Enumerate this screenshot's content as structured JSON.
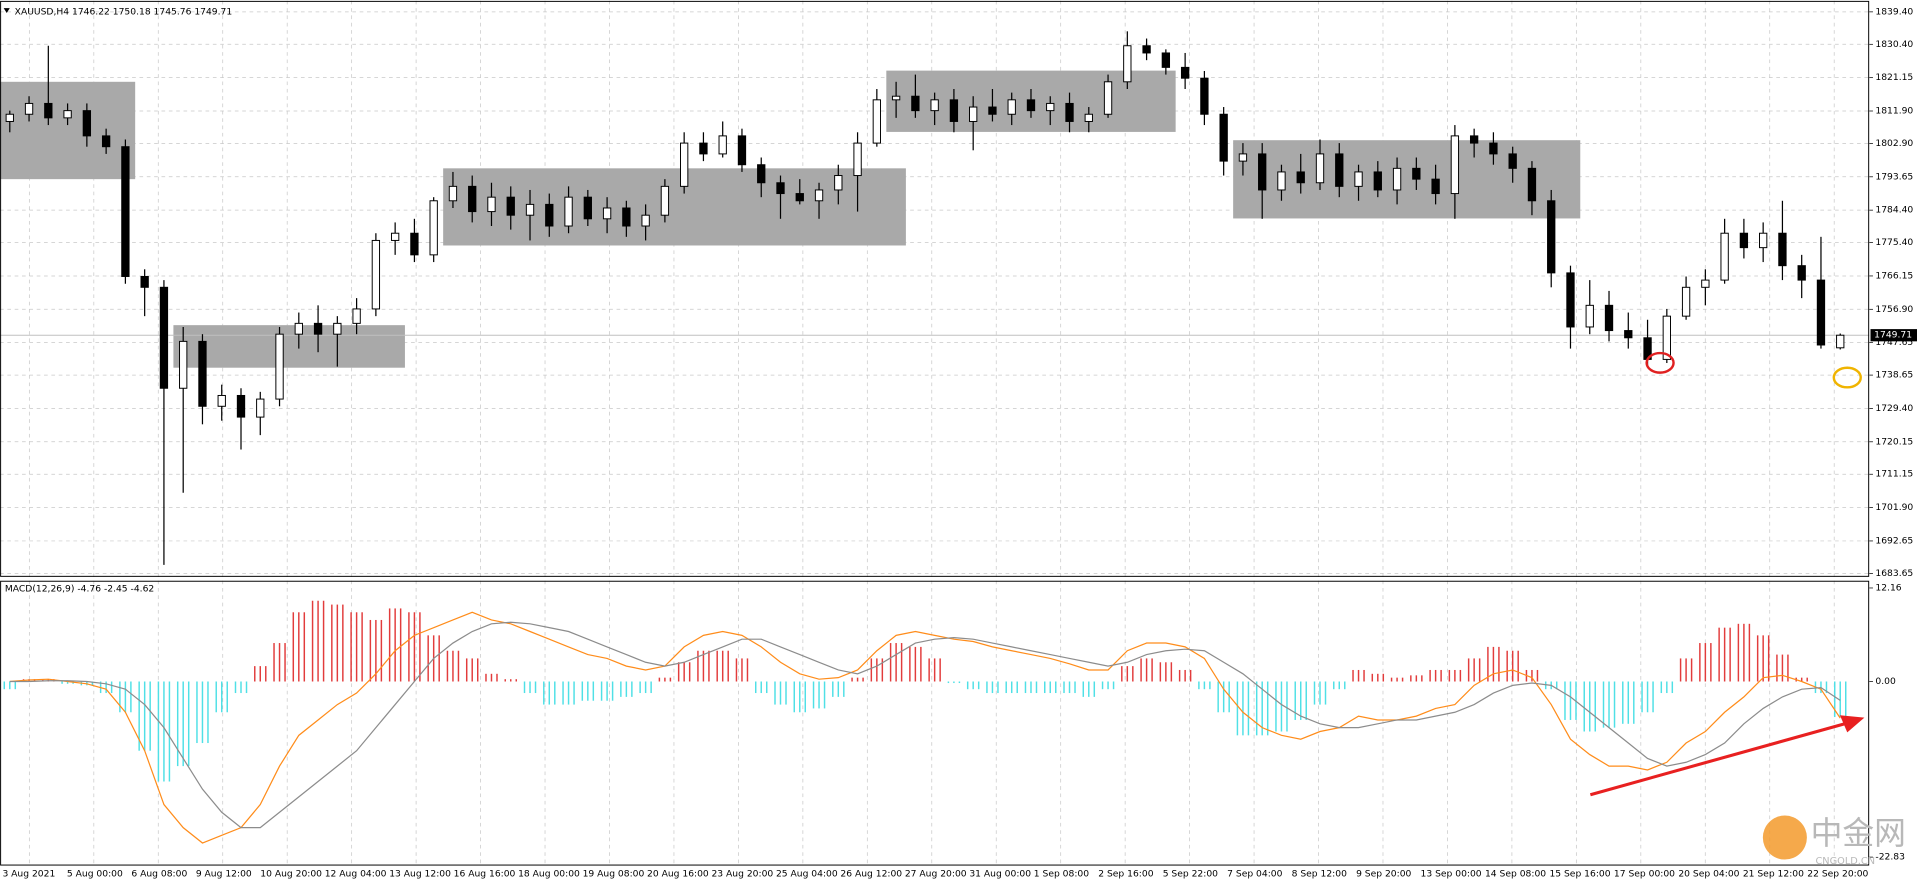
{
  "chart_data": [
    {
      "type": "candlestick",
      "title": "XAUUSD,H4  1746.22 1750.18 1745.76 1749.71",
      "ylim": [
        1683,
        1841.8
      ],
      "yticks": [
        {
          "value": 1839.4,
          "label": "1839.40"
        },
        {
          "value": 1830.4,
          "label": "1830.40"
        },
        1821.15,
        {
          "value": 1811.9,
          "label": "1811.90"
        },
        {
          "value": 1802.9,
          "label": "1802.90"
        },
        1793.65,
        {
          "value": 1784.4,
          "label": "1784.40"
        },
        {
          "value": 1775.4,
          "label": "1775.40"
        },
        1766.15,
        {
          "value": 1756.9,
          "label": "1756.90"
        },
        1747.65,
        1738.65,
        {
          "value": 1729.4,
          "label": "1729.40"
        },
        1720.15,
        1711.15,
        {
          "value": 1701.9,
          "label": "1701.90"
        },
        1692.65,
        1683.65
      ],
      "grid": true,
      "colors": {
        "up": "#ffffff",
        "down": "#000000",
        "wick": "#000000",
        "zone": "#a9a9a9",
        "last_line": "#c0c0c0"
      },
      "xlabels": [
        "3 Aug 2021",
        "5 Aug 00:00",
        "6 Aug 08:00",
        "9 Aug 12:00",
        "10 Aug 20:00",
        "12 Aug 04:00",
        "13 Aug 12:00",
        "16 Aug 16:00",
        "18 Aug 00:00",
        "19 Aug 08:00",
        "20 Aug 16:00",
        "23 Aug 20:00",
        "25 Aug 04:00",
        "26 Aug 12:00",
        "27 Aug 20:00",
        "31 Aug 00:00",
        "1 Sep 08:00",
        "2 Sep 16:00",
        "5 Sep 22:00",
        "7 Sep 04:00",
        "8 Sep 12:00",
        "9 Sep 20:00",
        "13 Sep 00:00",
        "14 Sep 08:00",
        "15 Sep 16:00",
        "17 Sep 00:00",
        "20 Sep 04:00",
        "21 Sep 12:00",
        "22 Sep 20:00"
      ],
      "zones": [
        {
          "values": [
            1793,
            1820
          ],
          "candles": [
            0,
            6
          ]
        },
        {
          "values": [
            1740.7,
            1752.5
          ],
          "candles": [
            9,
            20
          ]
        },
        {
          "values": [
            1774.6,
            1796
          ],
          "candles": [
            23,
            46
          ]
        },
        {
          "values": [
            1806.1,
            1823.1
          ],
          "candles": [
            46,
            60
          ]
        },
        {
          "values": [
            1782.1,
            1803.8
          ],
          "candles": [
            64,
            81
          ]
        }
      ],
      "candles": [
        [
          1809,
          1812,
          1806,
          1811
        ],
        [
          1811,
          1816,
          1809,
          1814
        ],
        [
          1814,
          1830,
          1808,
          1810
        ],
        [
          1810,
          1814,
          1808,
          1812
        ],
        [
          1812,
          1814,
          1802,
          1805
        ],
        [
          1805,
          1807,
          1800,
          1802
        ],
        [
          1802,
          1804,
          1764,
          1766
        ],
        [
          1766,
          1768,
          1755,
          1763
        ],
        [
          1763,
          1765,
          1686,
          1735
        ],
        [
          1735,
          1752,
          1706,
          1748
        ],
        [
          1748,
          1750,
          1725,
          1730
        ],
        [
          1730,
          1736,
          1726,
          1733
        ],
        [
          1733,
          1735,
          1718,
          1727
        ],
        [
          1727,
          1734,
          1722,
          1732
        ],
        [
          1732,
          1752,
          1730,
          1750
        ],
        [
          1750,
          1756,
          1746,
          1753
        ],
        [
          1753,
          1758,
          1745,
          1750
        ],
        [
          1750,
          1755,
          1741,
          1753
        ],
        [
          1753,
          1760,
          1750,
          1757
        ],
        [
          1757,
          1778,
          1755,
          1776
        ],
        [
          1776,
          1781,
          1772,
          1778
        ],
        [
          1778,
          1782,
          1770,
          1772
        ],
        [
          1772,
          1788,
          1770,
          1787
        ],
        [
          1787,
          1795,
          1785,
          1791
        ],
        [
          1791,
          1794,
          1781,
          1784
        ],
        [
          1784,
          1792,
          1780,
          1788
        ],
        [
          1788,
          1791,
          1779,
          1783
        ],
        [
          1783,
          1790,
          1776,
          1786
        ],
        [
          1786,
          1789,
          1777,
          1780
        ],
        [
          1780,
          1791,
          1778,
          1788
        ],
        [
          1788,
          1790,
          1780,
          1782
        ],
        [
          1782,
          1788,
          1778,
          1785
        ],
        [
          1785,
          1787,
          1777,
          1780
        ],
        [
          1780,
          1786,
          1776,
          1783
        ],
        [
          1783,
          1793,
          1781,
          1791
        ],
        [
          1791,
          1806,
          1789,
          1803
        ],
        [
          1803,
          1806,
          1798,
          1800
        ],
        [
          1800,
          1809,
          1799,
          1805
        ],
        [
          1805,
          1807,
          1795,
          1797
        ],
        [
          1797,
          1799,
          1788,
          1792
        ],
        [
          1792,
          1794,
          1782,
          1789
        ],
        [
          1789,
          1793,
          1786,
          1787
        ],
        [
          1787,
          1792,
          1782,
          1790
        ],
        [
          1790,
          1797,
          1786,
          1794
        ],
        [
          1794,
          1806,
          1784,
          1803
        ],
        [
          1803,
          1818,
          1802,
          1815
        ],
        [
          1815,
          1820,
          1810,
          1816
        ],
        [
          1816,
          1822,
          1810,
          1812
        ],
        [
          1812,
          1817,
          1808,
          1815
        ],
        [
          1815,
          1818,
          1806,
          1809
        ],
        [
          1809,
          1816,
          1801,
          1813
        ],
        [
          1813,
          1818,
          1809,
          1811
        ],
        [
          1811,
          1817,
          1808,
          1815
        ],
        [
          1815,
          1818,
          1810,
          1812
        ],
        [
          1812,
          1816,
          1808,
          1814
        ],
        [
          1814,
          1817,
          1806,
          1809
        ],
        [
          1809,
          1813,
          1806,
          1811
        ],
        [
          1811,
          1822,
          1810,
          1820
        ],
        [
          1820,
          1834,
          1818,
          1830
        ],
        [
          1830,
          1832,
          1826,
          1828
        ],
        [
          1828,
          1829,
          1822,
          1824
        ],
        [
          1824,
          1828,
          1818,
          1821
        ],
        [
          1821,
          1823,
          1808,
          1811
        ],
        [
          1811,
          1813,
          1794,
          1798
        ],
        [
          1798,
          1803,
          1794,
          1800
        ],
        [
          1800,
          1803,
          1782,
          1790
        ],
        [
          1790,
          1797,
          1787,
          1795
        ],
        [
          1795,
          1800,
          1789,
          1792
        ],
        [
          1792,
          1804,
          1790,
          1800
        ],
        [
          1800,
          1803,
          1788,
          1791
        ],
        [
          1791,
          1797,
          1787,
          1795
        ],
        [
          1795,
          1798,
          1788,
          1790
        ],
        [
          1790,
          1799,
          1786,
          1796
        ],
        [
          1796,
          1799,
          1790,
          1793
        ],
        [
          1793,
          1797,
          1786,
          1789
        ],
        [
          1789,
          1808,
          1782,
          1805
        ],
        [
          1805,
          1807,
          1799,
          1803
        ],
        [
          1803,
          1806,
          1797,
          1800
        ],
        [
          1800,
          1802,
          1792,
          1796
        ],
        [
          1796,
          1798,
          1783,
          1787
        ],
        [
          1787,
          1790,
          1763,
          1767
        ],
        [
          1767,
          1769,
          1746,
          1752
        ],
        [
          1752,
          1765,
          1750,
          1758
        ],
        [
          1758,
          1762,
          1748,
          1751
        ],
        [
          1751,
          1756,
          1746,
          1749
        ],
        [
          1749,
          1754,
          1741,
          1743
        ],
        [
          1743,
          1757,
          1742,
          1755
        ],
        [
          1755,
          1766,
          1754,
          1763
        ],
        [
          1763,
          1768,
          1758,
          1765
        ],
        [
          1765,
          1782,
          1764,
          1778
        ],
        [
          1778,
          1782,
          1771,
          1774
        ],
        [
          1774,
          1781,
          1770,
          1778
        ],
        [
          1778,
          1787,
          1765,
          1769
        ],
        [
          1769,
          1772,
          1760,
          1765
        ],
        [
          1765,
          1777,
          1746,
          1747
        ],
        [
          1746.22,
          1750.18,
          1745.76,
          1749.71
        ]
      ]
    },
    {
      "type": "macd",
      "title": "MACD(12,26,9) -4.76 -2.45 -4.62",
      "ylim": [
        -22.83,
        12.16
      ],
      "yticks": [
        12.16,
        {
          "value": 0,
          "label": "0.00"
        },
        -22.83
      ],
      "histogram": {
        "colors": [
          "#e23c3c",
          "#4fe0e6"
        ],
        "values": [
          -1,
          0.3,
          0.3,
          -0.3,
          -0.5,
          -1.5,
          -4,
          -9,
          -13,
          -11,
          -8,
          -4,
          -1.5,
          2,
          5,
          9,
          10.5,
          10,
          9,
          8,
          9.5,
          9,
          6,
          4,
          3,
          1,
          0.3,
          -1.5,
          -3,
          -3,
          -2.5,
          -2.5,
          -2,
          -1.5,
          0.5,
          2.5,
          4,
          4,
          3,
          -1.5,
          -3,
          -4,
          -3.5,
          -2,
          0.5,
          3,
          5,
          4.5,
          3,
          -0.2,
          -1,
          -1.5,
          -1.5,
          -1.5,
          -1.5,
          -1.5,
          -2,
          -1,
          2,
          3,
          2.5,
          1.5,
          -1,
          -4,
          -7,
          -7,
          -6.5,
          -5,
          -3,
          -1,
          1.5,
          1,
          0.5,
          0.8,
          1.5,
          1.5,
          3,
          4.5,
          4,
          1.5,
          -1,
          -5,
          -6.5,
          -6,
          -5.5,
          -4,
          -1.5,
          3,
          5,
          7,
          7.5,
          6,
          3.5,
          0.5,
          -1.5,
          -4.62
        ]
      },
      "lines": [
        {
          "color": "#ff8c1a",
          "values": [
            0,
            0.2,
            0.3,
            0,
            -0.3,
            -1,
            -4,
            -9,
            -16,
            -19,
            -21,
            -20,
            -19,
            -16,
            -11,
            -7,
            -5,
            -3,
            -1.5,
            1,
            4,
            6,
            7,
            8,
            9,
            8,
            7.5,
            6.5,
            5.5,
            4.5,
            3.5,
            3,
            2,
            1.5,
            2,
            4.5,
            6,
            6.5,
            6,
            4.5,
            2.5,
            1,
            0.3,
            0.5,
            1.5,
            4,
            6,
            6.5,
            6,
            5.5,
            5.2,
            4.5,
            4,
            3.5,
            3,
            2.3,
            1.5,
            1.5,
            4,
            5,
            5,
            4.5,
            3,
            -1,
            -4,
            -6,
            -7,
            -7.5,
            -6.5,
            -6,
            -4.5,
            -5,
            -5,
            -4.5,
            -3.5,
            -3,
            -0.5,
            1,
            1.5,
            0.5,
            -3,
            -7.5,
            -9.5,
            -11,
            -11,
            -11.5,
            -10.5,
            -8,
            -6.5,
            -4,
            -2,
            0.5,
            0.8,
            0,
            -1,
            -4.76
          ]
        },
        {
          "color": "#8c8c8c",
          "values": [
            0,
            0,
            0.1,
            0.1,
            0,
            -0.3,
            -1,
            -3,
            -6,
            -10,
            -14,
            -17,
            -19,
            -19,
            -17,
            -15,
            -13,
            -11,
            -9,
            -6,
            -3,
            0,
            3,
            5,
            6.5,
            7.5,
            7.7,
            7.5,
            7,
            6.5,
            5.5,
            4.5,
            3.5,
            2.5,
            2,
            2.5,
            3.5,
            4.5,
            5.5,
            5.5,
            4.5,
            3.5,
            2.5,
            1.5,
            1,
            2,
            3.5,
            5,
            5.5,
            5.7,
            5.5,
            5,
            4.5,
            4,
            3.5,
            3,
            2.5,
            2,
            2.5,
            3.5,
            4,
            4.2,
            4,
            2.5,
            1,
            -1,
            -3,
            -4.5,
            -5.5,
            -6,
            -6,
            -5.5,
            -5,
            -5,
            -4.5,
            -4,
            -3,
            -1.5,
            -0.5,
            -0.2,
            -0.5,
            -2,
            -4,
            -6,
            -8,
            -10,
            -11,
            -10.5,
            -9.5,
            -8,
            -5.5,
            -3.5,
            -2,
            -1,
            -0.8,
            -2.45
          ]
        }
      ]
    }
  ],
  "watermark": {
    "name": "中金网",
    "site": "CNGOLD.CN"
  }
}
